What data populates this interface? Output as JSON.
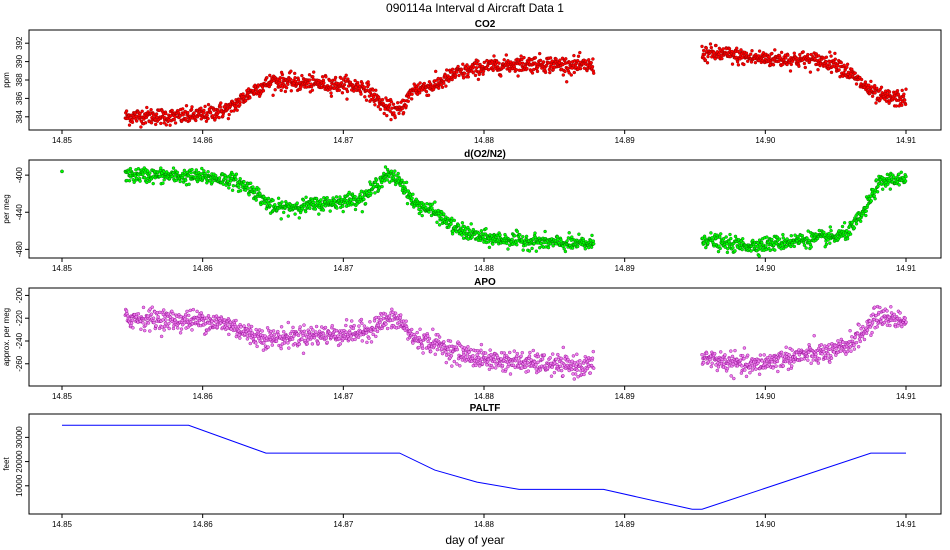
{
  "title": "090114a   Interval d Aircraft Data 1",
  "xlabel": "day of year",
  "chart_data": [
    {
      "type": "scatter",
      "title": "CO2",
      "ylabel": "ppm",
      "xlim": [
        14.85,
        14.91
      ],
      "ylim": [
        383,
        393
      ],
      "yticks": [
        384,
        386,
        388,
        390,
        392
      ],
      "xticks": [
        14.85,
        14.86,
        14.87,
        14.88,
        14.89,
        14.9,
        14.91
      ],
      "colors": {
        "fill": "#ff0000",
        "edge": "#8a0000"
      },
      "series": [
        {
          "x": [
            14.8545,
            14.856,
            14.858,
            14.86,
            14.862,
            14.8635,
            14.865,
            14.8665,
            14.868,
            14.87,
            14.8715,
            14.873,
            14.874,
            14.875,
            14.8765,
            14.878,
            14.88,
            14.882,
            14.884,
            14.886,
            14.8878
          ],
          "y": [
            384.0,
            384.1,
            384.0,
            384.2,
            384.9,
            386.8,
            387.9,
            387.7,
            387.6,
            387.5,
            387.2,
            385.0,
            384.6,
            387.0,
            387.4,
            388.7,
            389.4,
            389.7,
            389.8,
            389.6,
            389.5
          ]
        },
        {
          "x": [
            14.8955,
            14.897,
            14.899,
            14.901,
            14.903,
            14.905,
            14.906,
            14.907,
            14.908,
            14.909,
            14.91
          ],
          "y": [
            390.9,
            390.8,
            390.4,
            390.3,
            390.2,
            389.9,
            388.7,
            387.4,
            386.2,
            386.0,
            386.0
          ]
        }
      ]
    },
    {
      "type": "scatter",
      "title": "d(O2/N2)",
      "ylabel": "per meg",
      "xlim": [
        14.85,
        14.91
      ],
      "ylim": [
        -485,
        -388
      ],
      "yticks": [
        -400,
        -440,
        -480
      ],
      "xticks": [
        14.85,
        14.86,
        14.87,
        14.88,
        14.89,
        14.9,
        14.91
      ],
      "colors": {
        "fill": "#00ff00",
        "edge": "#006400"
      },
      "series": [
        {
          "x": [
            14.85
          ],
          "y": [
            -396
          ]
        },
        {
          "x": [
            14.8545,
            14.856,
            14.858,
            14.86,
            14.862,
            14.8635,
            14.865,
            14.8665,
            14.868,
            14.87,
            14.8715,
            14.873,
            14.874,
            14.875,
            14.8765,
            14.878,
            14.88,
            14.882,
            14.884,
            14.886,
            14.8878
          ],
          "y": [
            -400,
            -400,
            -401,
            -402,
            -405,
            -415,
            -436,
            -434,
            -432,
            -428,
            -424,
            -400,
            -405,
            -430,
            -440,
            -458,
            -468,
            -470,
            -472,
            -474,
            -474
          ]
        },
        {
          "x": [
            14.8955,
            14.897,
            14.899,
            14.901,
            14.903,
            14.905,
            14.906,
            14.907,
            14.908,
            14.909,
            14.91
          ],
          "y": [
            -468,
            -474,
            -476,
            -473,
            -469,
            -467,
            -460,
            -440,
            -410,
            -404,
            -406
          ]
        }
      ]
    },
    {
      "type": "scatter",
      "title": "APO",
      "ylabel": "approx. per meg",
      "xlim": [
        14.85,
        14.91
      ],
      "ylim": [
        -276,
        -197
      ],
      "yticks": [
        -200,
        -220,
        -240,
        -260
      ],
      "xticks": [
        14.85,
        14.86,
        14.87,
        14.88,
        14.89,
        14.9,
        14.91
      ],
      "colors": {
        "fill": "#ee82ee",
        "edge": "#8b008b"
      },
      "series": [
        {
          "x": [
            14.8545,
            14.856,
            14.858,
            14.86,
            14.862,
            14.8635,
            14.865,
            14.8665,
            14.868,
            14.87,
            14.8715,
            14.873,
            14.874,
            14.875,
            14.8765,
            14.878,
            14.88,
            14.882,
            14.884,
            14.886,
            14.8878
          ],
          "y": [
            -220,
            -220,
            -222,
            -222,
            -226,
            -235,
            -238,
            -236,
            -235,
            -234,
            -232,
            -222,
            -222,
            -238,
            -242,
            -250,
            -256,
            -258,
            -260,
            -262,
            -262
          ]
        },
        {
          "x": [
            14.8955,
            14.897,
            14.899,
            14.901,
            14.903,
            14.905,
            14.906,
            14.907,
            14.908,
            14.909,
            14.91
          ],
          "y": [
            -254,
            -258,
            -262,
            -256,
            -252,
            -250,
            -242,
            -232,
            -218,
            -220,
            -222
          ]
        }
      ]
    },
    {
      "type": "line",
      "title": "PALTF",
      "ylabel": "feet",
      "xlim": [
        14.85,
        14.91
      ],
      "ylim": [
        0,
        38000
      ],
      "yticks": [
        10000,
        20000,
        30000
      ],
      "xticks": [
        14.85,
        14.86,
        14.87,
        14.88,
        14.89,
        14.9,
        14.91
      ],
      "colors": {
        "line": "#0000ff"
      },
      "series": [
        {
          "x": [
            14.85,
            14.859,
            14.8645,
            14.874,
            14.8765,
            14.8795,
            14.8825,
            14.8885,
            14.8948,
            14.8955,
            14.9075,
            14.91
          ],
          "y": [
            35000,
            35000,
            23500,
            23500,
            16500,
            11500,
            8500,
            8500,
            300,
            300,
            23500,
            23500
          ]
        }
      ]
    }
  ]
}
